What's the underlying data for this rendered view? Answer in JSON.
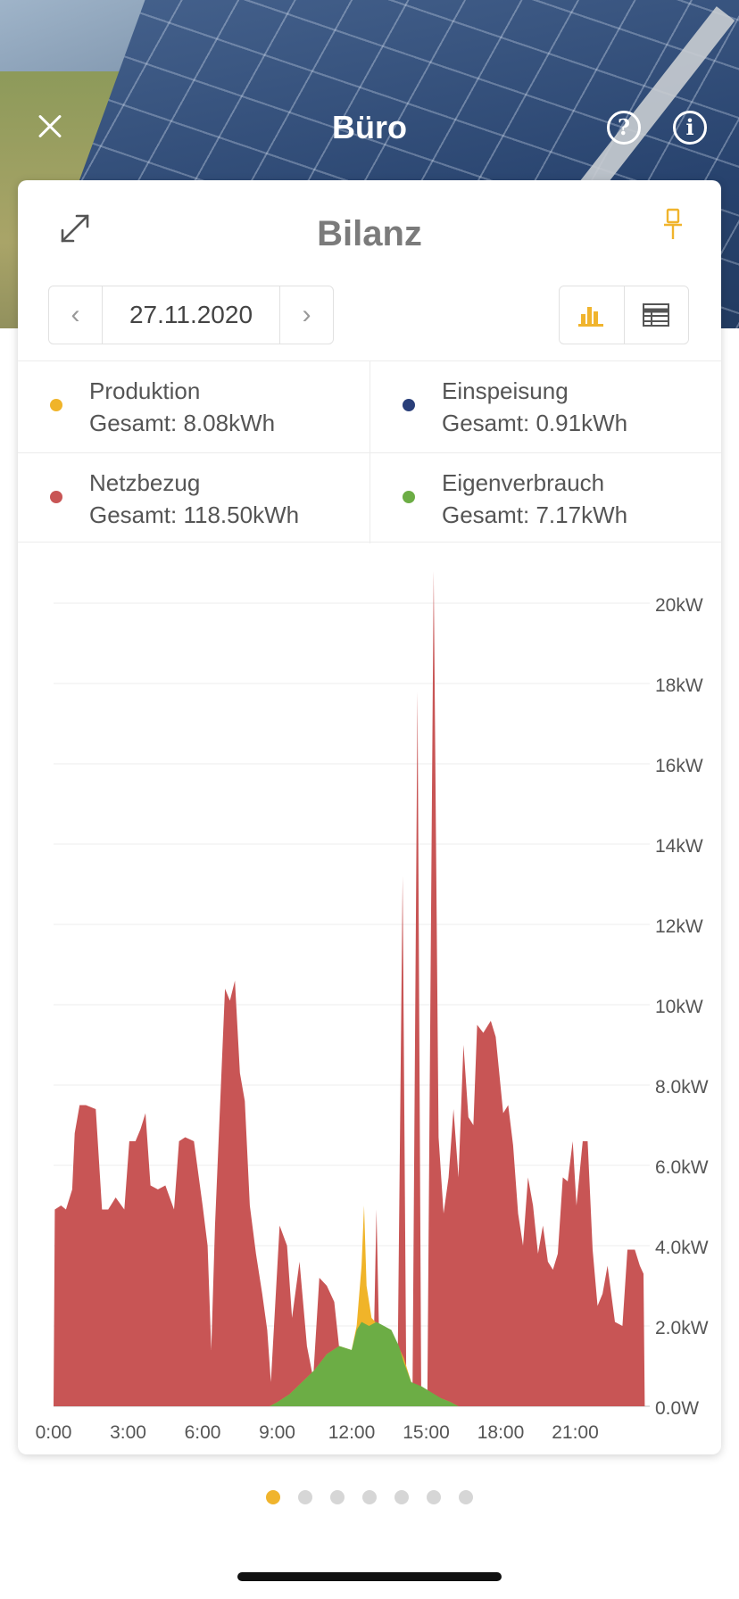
{
  "header": {
    "title": "Büro"
  },
  "card": {
    "title": "Bilanz"
  },
  "date_nav": {
    "date": "27.11.2020"
  },
  "colors": {
    "produktion": "#f0b429",
    "einspeisung": "#2a3f7a",
    "netzbezug": "#c85555",
    "eigenverbrauch": "#6cad45",
    "accent": "#f0b42d"
  },
  "legend": [
    {
      "name": "Produktion",
      "total": "Gesamt: 8.08kWh",
      "color": "#f0b429"
    },
    {
      "name": "Einspeisung",
      "total": "Gesamt: 0.91kWh",
      "color": "#2a3f7a"
    },
    {
      "name": "Netzbezug",
      "total": "Gesamt: 118.50kWh",
      "color": "#c85555"
    },
    {
      "name": "Eigenverbrauch",
      "total": "Gesamt: 7.17kWh",
      "color": "#6cad45"
    }
  ],
  "pager": {
    "count": 7,
    "active": 0
  },
  "chart_data": {
    "type": "area",
    "xlabel": "",
    "ylabel": "",
    "x_range": [
      0,
      24
    ],
    "ylim": [
      0,
      21
    ],
    "x_ticks": [
      "0:00",
      "3:00",
      "6:00",
      "9:00",
      "12:00",
      "15:00",
      "18:00",
      "21:00"
    ],
    "y_ticks": [
      "0.0W",
      "2.0kW",
      "4.0kW",
      "6.0kW",
      "8.0kW",
      "10kW",
      "12kW",
      "14kW",
      "16kW",
      "18kW",
      "20kW"
    ],
    "grid": true,
    "series": [
      {
        "name": "Netzbezug",
        "color": "#c85555",
        "points": [
          [
            0,
            0
          ],
          [
            0.05,
            4.9
          ],
          [
            0.3,
            5.0
          ],
          [
            0.5,
            4.9
          ],
          [
            0.75,
            5.4
          ],
          [
            0.85,
            6.8
          ],
          [
            1.05,
            7.5
          ],
          [
            1.3,
            7.5
          ],
          [
            1.7,
            7.4
          ],
          [
            1.95,
            4.9
          ],
          [
            2.2,
            4.9
          ],
          [
            2.5,
            5.2
          ],
          [
            2.85,
            4.9
          ],
          [
            3.05,
            6.6
          ],
          [
            3.3,
            6.6
          ],
          [
            3.5,
            6.9
          ],
          [
            3.7,
            7.3
          ],
          [
            3.9,
            5.5
          ],
          [
            4.2,
            5.4
          ],
          [
            4.5,
            5.5
          ],
          [
            4.85,
            4.9
          ],
          [
            5.05,
            6.6
          ],
          [
            5.3,
            6.7
          ],
          [
            5.65,
            6.6
          ],
          [
            6.0,
            5.0
          ],
          [
            6.2,
            4.0
          ],
          [
            6.35,
            1.4
          ],
          [
            6.5,
            4.5
          ],
          [
            6.9,
            10.4
          ],
          [
            7.1,
            10.1
          ],
          [
            7.3,
            10.6
          ],
          [
            7.5,
            8.3
          ],
          [
            7.7,
            7.6
          ],
          [
            7.9,
            5.0
          ],
          [
            8.15,
            3.8
          ],
          [
            8.4,
            2.8
          ],
          [
            8.6,
            1.9
          ],
          [
            8.75,
            0.6
          ],
          [
            9.1,
            4.5
          ],
          [
            9.4,
            4.0
          ],
          [
            9.6,
            2.2
          ],
          [
            9.9,
            3.6
          ],
          [
            10.2,
            1.5
          ],
          [
            10.45,
            0.7
          ],
          [
            10.7,
            3.2
          ],
          [
            11.0,
            3.0
          ],
          [
            11.3,
            2.6
          ],
          [
            11.7,
            0.3
          ],
          [
            12.2,
            0.4
          ],
          [
            12.6,
            1.8
          ],
          [
            12.9,
            1.9
          ],
          [
            13.0,
            4.9
          ],
          [
            13.1,
            1.9
          ],
          [
            13.5,
            1.5
          ],
          [
            13.85,
            0.9
          ],
          [
            14.05,
            13.2
          ],
          [
            14.2,
            0.6
          ],
          [
            14.45,
            0.4
          ],
          [
            14.65,
            17.8
          ],
          [
            14.8,
            0.5
          ],
          [
            15.05,
            0.4
          ],
          [
            15.3,
            20.8
          ],
          [
            15.5,
            6.7
          ],
          [
            15.7,
            4.8
          ],
          [
            15.9,
            5.7
          ],
          [
            16.1,
            7.4
          ],
          [
            16.3,
            5.7
          ],
          [
            16.5,
            9.0
          ],
          [
            16.7,
            7.2
          ],
          [
            16.9,
            7.0
          ],
          [
            17.05,
            9.5
          ],
          [
            17.3,
            9.3
          ],
          [
            17.6,
            9.6
          ],
          [
            17.8,
            9.2
          ],
          [
            18.1,
            7.3
          ],
          [
            18.3,
            7.5
          ],
          [
            18.5,
            6.5
          ],
          [
            18.7,
            4.8
          ],
          [
            18.9,
            4.0
          ],
          [
            19.1,
            5.7
          ],
          [
            19.3,
            5.0
          ],
          [
            19.5,
            3.8
          ],
          [
            19.7,
            4.5
          ],
          [
            19.9,
            3.6
          ],
          [
            20.1,
            3.4
          ],
          [
            20.3,
            3.8
          ],
          [
            20.5,
            5.7
          ],
          [
            20.7,
            5.6
          ],
          [
            20.9,
            6.6
          ],
          [
            21.05,
            5.0
          ],
          [
            21.3,
            6.6
          ],
          [
            21.5,
            6.6
          ],
          [
            21.7,
            3.9
          ],
          [
            21.9,
            2.5
          ],
          [
            22.1,
            2.8
          ],
          [
            22.3,
            3.5
          ],
          [
            22.6,
            2.1
          ],
          [
            22.9,
            2.0
          ],
          [
            23.1,
            3.9
          ],
          [
            23.4,
            3.9
          ],
          [
            23.6,
            3.5
          ],
          [
            23.75,
            3.3
          ],
          [
            23.8,
            0
          ]
        ]
      },
      {
        "name": "Produktion",
        "color": "#f0b429",
        "points": [
          [
            8.7,
            0
          ],
          [
            9.0,
            0.1
          ],
          [
            9.5,
            0.3
          ],
          [
            10.0,
            0.6
          ],
          [
            10.5,
            0.9
          ],
          [
            11.0,
            1.3
          ],
          [
            11.5,
            1.5
          ],
          [
            12.0,
            1.4
          ],
          [
            12.2,
            2.0
          ],
          [
            12.4,
            3.5
          ],
          [
            12.5,
            5.0
          ],
          [
            12.6,
            3.0
          ],
          [
            12.8,
            2.2
          ],
          [
            13.1,
            2.0
          ],
          [
            13.5,
            1.9
          ],
          [
            13.8,
            1.6
          ],
          [
            14.1,
            1.2
          ],
          [
            14.4,
            0.6
          ],
          [
            14.8,
            0.4
          ],
          [
            15.2,
            0.3
          ],
          [
            15.6,
            0.2
          ],
          [
            16.0,
            0.1
          ],
          [
            16.3,
            0
          ]
        ]
      },
      {
        "name": "Eigenverbrauch",
        "color": "#6cad45",
        "points": [
          [
            8.7,
            0
          ],
          [
            9.0,
            0.1
          ],
          [
            9.5,
            0.3
          ],
          [
            10.0,
            0.6
          ],
          [
            10.5,
            0.9
          ],
          [
            11.0,
            1.3
          ],
          [
            11.5,
            1.5
          ],
          [
            12.0,
            1.4
          ],
          [
            12.2,
            1.9
          ],
          [
            12.4,
            2.1
          ],
          [
            12.7,
            2.0
          ],
          [
            13.0,
            2.1
          ],
          [
            13.3,
            2.0
          ],
          [
            13.6,
            1.9
          ],
          [
            13.9,
            1.5
          ],
          [
            14.1,
            1.1
          ],
          [
            14.4,
            0.6
          ],
          [
            14.8,
            0.5
          ],
          [
            15.2,
            0.35
          ],
          [
            15.6,
            0.2
          ],
          [
            16.0,
            0.1
          ],
          [
            16.3,
            0
          ]
        ]
      }
    ]
  }
}
